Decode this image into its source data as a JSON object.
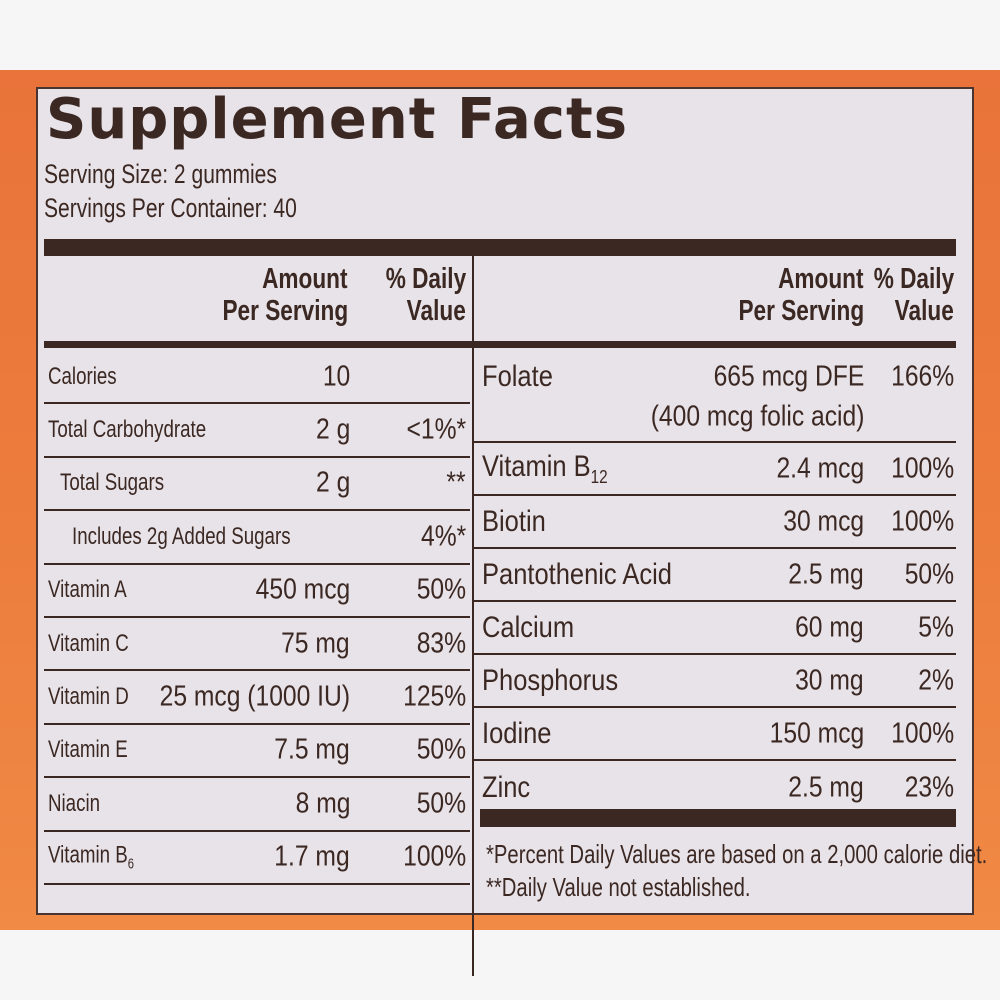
{
  "title": "Supplement Facts",
  "serving_size": "Serving Size:  2 gummies",
  "servings_per_container": "Servings Per Container: 40",
  "header": {
    "amount_line1": "Amount",
    "amount_line2": "Per Serving",
    "dv_line1": "% Daily",
    "dv_line2": "Value"
  },
  "left_rows": [
    {
      "name": "Calories",
      "amount": "10",
      "dv": "",
      "indent": 0
    },
    {
      "name": "Total Carbohydrate",
      "amount": "2 g",
      "dv": "<1%*",
      "indent": 0
    },
    {
      "name": "Total Sugars",
      "amount": "2 g",
      "dv": "**",
      "indent": 1
    },
    {
      "name": "Includes 2g Added Sugars",
      "amount": "",
      "dv": "4%*",
      "indent": 2
    },
    {
      "name": "Vitamin A",
      "amount": "450 mcg",
      "dv": "50%",
      "indent": 0
    },
    {
      "name": "Vitamin C",
      "amount": "75 mg",
      "dv": "83%",
      "indent": 0
    },
    {
      "name": "Vitamin D",
      "amount": "25 mcg (1000 IU)",
      "dv": "125%",
      "indent": 0
    },
    {
      "name": "Vitamin E",
      "amount": "7.5 mg",
      "dv": "50%",
      "indent": 0
    },
    {
      "name": "Niacin",
      "amount": "8 mg",
      "dv": "50%",
      "indent": 0
    },
    {
      "name": "Vitamin B",
      "sub": "6",
      "amount": "1.7 mg",
      "dv": "100%",
      "indent": 0
    }
  ],
  "right_rows": [
    {
      "name": "Folate",
      "amount": "665 mcg DFE",
      "amount2": "(400 mcg folic acid)",
      "dv": "166%"
    },
    {
      "name": "Vitamin B",
      "sub": "12",
      "amount": "2.4 mcg",
      "dv": "100%"
    },
    {
      "name": "Biotin",
      "amount": "30 mcg",
      "dv": "100%"
    },
    {
      "name": "Pantothenic Acid",
      "amount": "2.5 mg",
      "dv": "50%"
    },
    {
      "name": "Calcium",
      "amount": "60 mg",
      "dv": "5%"
    },
    {
      "name": "Phosphorus",
      "amount": "30 mg",
      "dv": "2%"
    },
    {
      "name": "Iodine",
      "amount": "150 mcg",
      "dv": "100%"
    },
    {
      "name": "Zinc",
      "amount": "2.5 mg",
      "dv": "23%"
    }
  ],
  "footnotes": [
    "*Percent Daily Values are based on a 2,000 calorie diet.",
    "**Daily Value not established."
  ],
  "colors": {
    "ink": "#3b2823",
    "panel": "#e8e3e8",
    "band": "#ec7c3c"
  }
}
